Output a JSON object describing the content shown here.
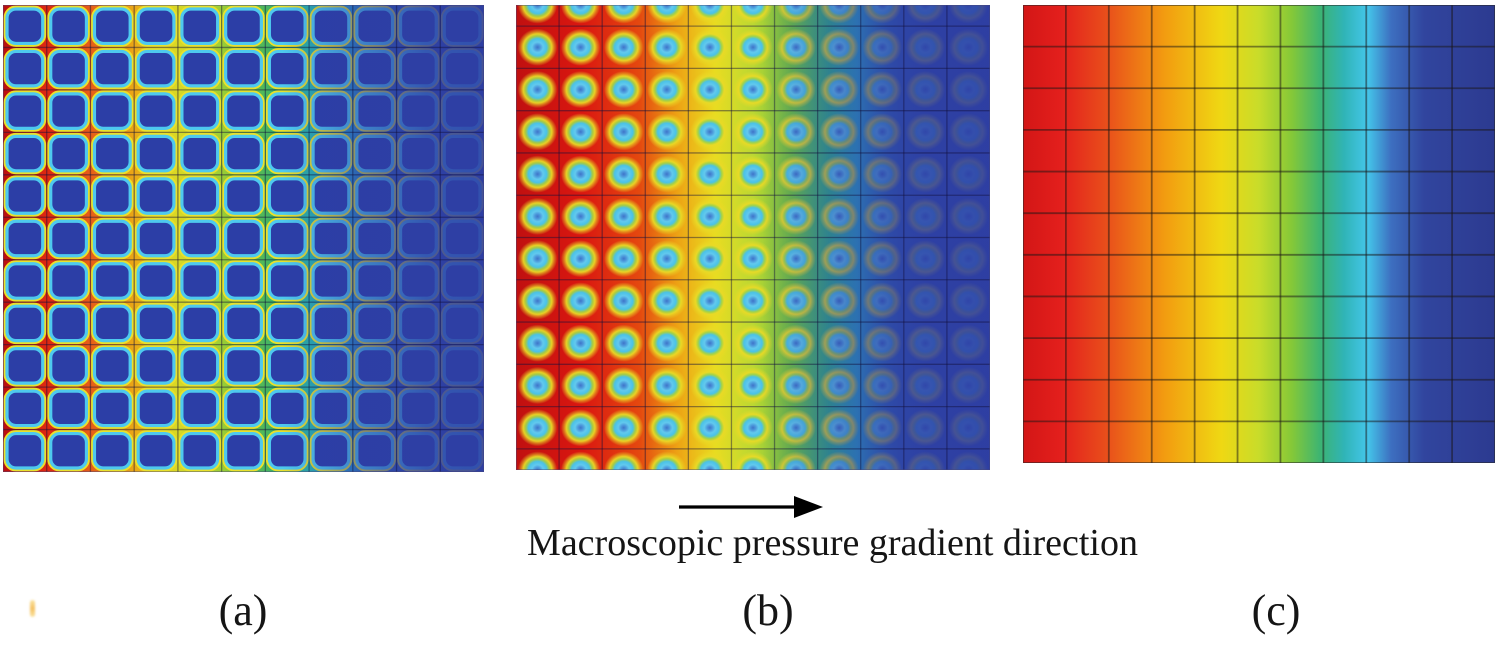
{
  "figure": {
    "arrow_label": "Macroscopic pressure gradient direction",
    "panels": [
      {
        "id": "a",
        "label": "(a)"
      },
      {
        "id": "b",
        "label": "(b)"
      },
      {
        "id": "c",
        "label": "(c)"
      }
    ]
  },
  "colors": {
    "background": "#ffffff",
    "text": "#151515",
    "arrow": "#000000",
    "artifact": "#f2b23c"
  },
  "chart_data": [
    {
      "type": "heatmap",
      "panel": "a",
      "style": "cells",
      "field": "pore-scale pressure field in a periodic square-obstacle array, high (red) at left decaying to low (blue) at right",
      "grid": {
        "columns": 11,
        "rows": 11
      },
      "colormap": "jet",
      "legend": "none",
      "axes": "none",
      "gradient_stops": [
        [
          0,
          "#b80f0f"
        ],
        [
          0.05,
          "#d91b10"
        ],
        [
          0.12,
          "#e03312"
        ],
        [
          0.18,
          "#e65c18"
        ],
        [
          0.26,
          "#eb9e15"
        ],
        [
          0.33,
          "#e7d51f"
        ],
        [
          0.41,
          "#c3da2e"
        ],
        [
          0.49,
          "#7cc43c"
        ],
        [
          0.57,
          "#35b06e"
        ],
        [
          0.64,
          "#2ab4b0"
        ],
        [
          0.7,
          "#29a4cc"
        ],
        [
          0.77,
          "#2f6cb4"
        ],
        [
          0.85,
          "#2f4aa4"
        ],
        [
          1,
          "#2d3c96"
        ]
      ],
      "cell": {
        "fill": "#2c3ea6",
        "rim": "#4ec9ee",
        "fringe": "#e9e12c"
      },
      "fade_stops": [
        [
          0,
          "#2e3fa4",
          0
        ],
        [
          0.58,
          "#2e3fa4",
          0
        ],
        [
          0.74,
          "#2e3fa4",
          0.5
        ],
        [
          0.88,
          "#2e3fa4",
          0.82
        ],
        [
          1,
          "#2e3fa4",
          0.88
        ]
      ],
      "mesh": {
        "color": "rgba(18,16,60,0.45)",
        "width": 1.3
      },
      "border": "rgba(70,70,120,0.45)"
    },
    {
      "type": "heatmap",
      "panel": "b",
      "style": "rings",
      "field": "pore-scale field with circular vortex cells (half-cell vertical offset), hot red zone extends further right than panel a",
      "grid": {
        "columns": 11,
        "rows": 11
      },
      "colormap": "jet",
      "legend": "none",
      "axes": "none",
      "gradient_stops": [
        [
          0,
          "#c01010"
        ],
        [
          0.14,
          "#da1710"
        ],
        [
          0.26,
          "#e4480f"
        ],
        [
          0.34,
          "#eda214"
        ],
        [
          0.42,
          "#e9dc20"
        ],
        [
          0.5,
          "#bcd832"
        ],
        [
          0.58,
          "#6cbe40"
        ],
        [
          0.66,
          "#2fae80"
        ],
        [
          0.72,
          "#2aaec2"
        ],
        [
          0.79,
          "#2f6ab2"
        ],
        [
          0.87,
          "#2e47a2"
        ],
        [
          1,
          "#2c3b96"
        ]
      ],
      "ring_stops": [
        [
          0,
          "#3f74c8",
          1
        ],
        [
          0.14,
          "#4d9adc",
          1
        ],
        [
          0.28,
          "#62c9ee",
          1
        ],
        [
          0.46,
          "#4ac2e6",
          1
        ],
        [
          0.6,
          "#a2d348",
          0.95
        ],
        [
          0.72,
          "#e9da26",
          0.95
        ],
        [
          0.84,
          "#e9da26",
          0.5
        ],
        [
          1,
          "#e9da26",
          0
        ]
      ],
      "fade_stops": [
        [
          0,
          "#2e3fa4",
          0
        ],
        [
          0.52,
          "#2e3fa4",
          0
        ],
        [
          0.68,
          "#2e3fa4",
          0.45
        ],
        [
          0.82,
          "#2e3fa4",
          0.82
        ],
        [
          1,
          "#2e3fa4",
          0.9
        ]
      ],
      "mesh": {
        "color": "rgba(18,16,60,0.45)",
        "width": 1.3
      },
      "border": "rgba(70,70,120,0.45)"
    },
    {
      "type": "heatmap",
      "panel": "c",
      "style": "smooth",
      "field": "macroscopic pressure field: smooth left-to-right jet gradient (red high to navy low) over an 11x11 cell grid",
      "grid": {
        "columns": 11,
        "rows": 11
      },
      "colormap": "jet",
      "legend": "none",
      "axes": "none",
      "gradient_stops": [
        [
          0,
          "#d31616"
        ],
        [
          0.08,
          "#e31f1c"
        ],
        [
          0.18,
          "#e9501b"
        ],
        [
          0.3,
          "#f29c10"
        ],
        [
          0.42,
          "#efd813"
        ],
        [
          0.5,
          "#c8dc2a"
        ],
        [
          0.57,
          "#84c838"
        ],
        [
          0.63,
          "#3cb473"
        ],
        [
          0.68,
          "#30b4b6"
        ],
        [
          0.73,
          "#44c6ea"
        ],
        [
          0.78,
          "#3d6fc0"
        ],
        [
          0.85,
          "#31459e"
        ],
        [
          1,
          "#2c3a90"
        ]
      ],
      "mesh": {
        "color": "rgba(25,22,22,0.5)",
        "width": 1.8
      },
      "border": "rgba(40,40,40,0.55)"
    }
  ]
}
